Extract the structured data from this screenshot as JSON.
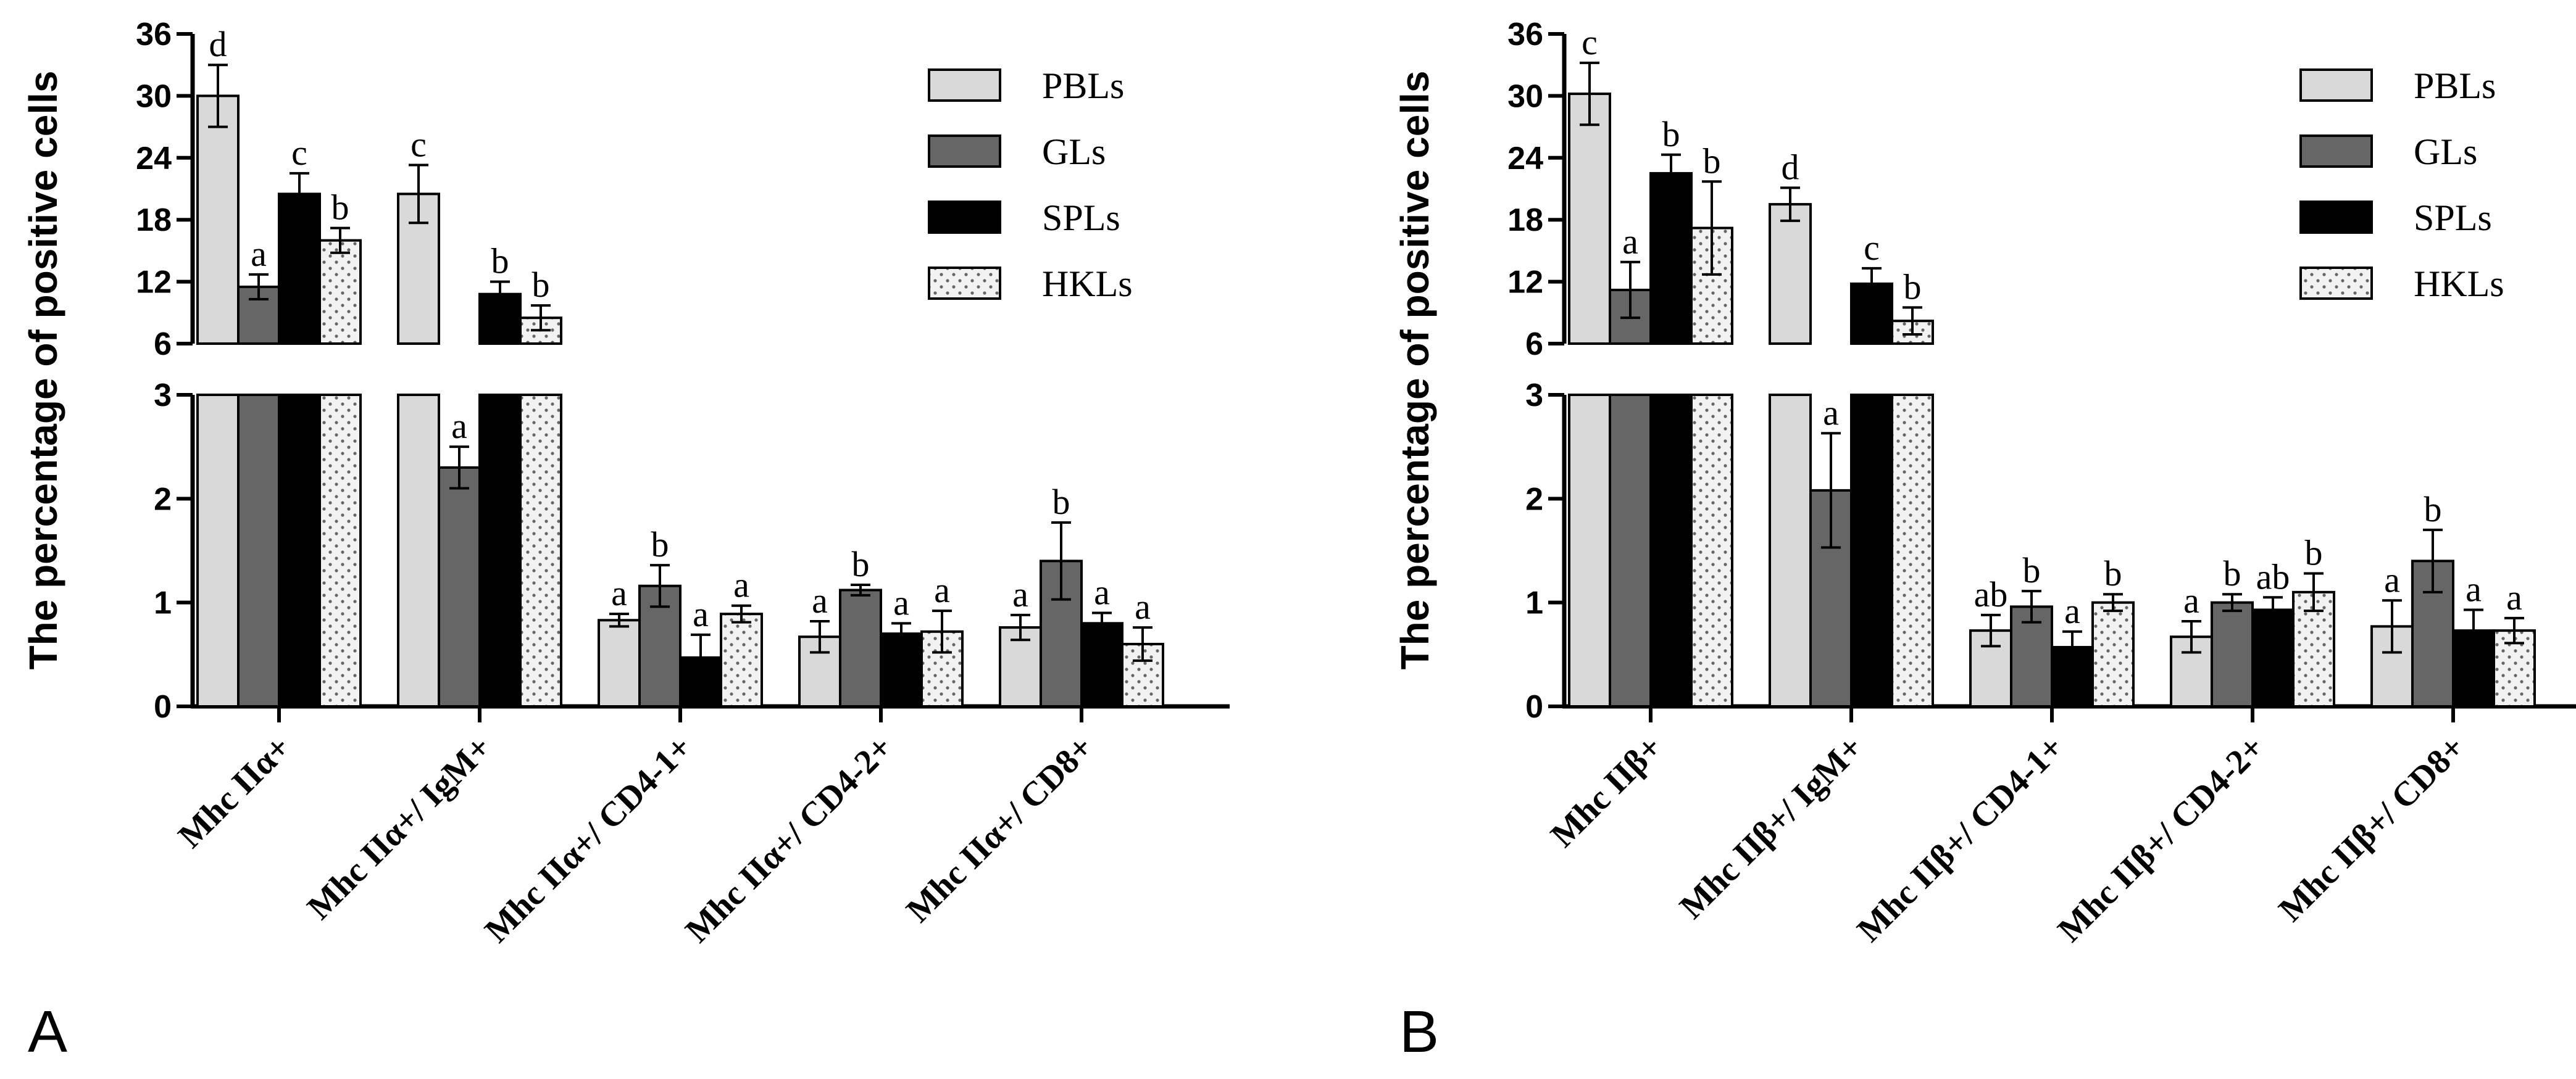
{
  "chart_data": [
    {
      "panel": "A",
      "type": "bar",
      "ylabel": "The percentage of positive cells",
      "ylim": [
        0,
        36
      ],
      "axis_break": [
        3,
        6
      ],
      "y_ticks_upper": [
        "6",
        "12",
        "18",
        "24",
        "30",
        "36"
      ],
      "y_ticks_lower": [
        "0",
        "1",
        "2",
        "3"
      ],
      "categories": [
        "Mhc IIα+",
        "Mhc IIα+/ IgM+",
        "Mhc IIα+/ CD4-1+",
        "Mhc IIα+/ CD4-2+",
        "Mhc IIα+/ CD8+"
      ],
      "legend": [
        "PBLs",
        "GLs",
        "SPLs",
        "HKLs"
      ],
      "series": [
        {
          "name": "PBLs",
          "values": [
            30.0,
            20.5,
            0.83,
            0.67,
            0.76
          ],
          "errors": [
            3.0,
            2.8,
            0.06,
            0.15,
            0.12
          ],
          "labels": [
            "d",
            "c",
            "a",
            "a",
            "a"
          ]
        },
        {
          "name": "GLs",
          "values": [
            11.5,
            2.3,
            1.16,
            1.12,
            1.4
          ],
          "errors": [
            1.2,
            0.2,
            0.2,
            0.05,
            0.37
          ],
          "labels": [
            "a",
            "a",
            "b",
            "b",
            "b"
          ]
        },
        {
          "name": "SPLs",
          "values": [
            20.5,
            10.8,
            0.47,
            0.7,
            0.8
          ],
          "errors": [
            2.0,
            1.2,
            0.22,
            0.1,
            0.1
          ],
          "labels": [
            "c",
            "b",
            "a",
            "a",
            "a"
          ]
        },
        {
          "name": "HKLs",
          "values": [
            16.0,
            8.5,
            0.89,
            0.72,
            0.6
          ],
          "errors": [
            1.2,
            1.2,
            0.08,
            0.2,
            0.16
          ],
          "labels": [
            "b",
            "b",
            "a",
            "a",
            "a"
          ]
        }
      ]
    },
    {
      "panel": "B",
      "type": "bar",
      "ylabel": "The percentage of positive cells",
      "ylim": [
        0,
        36
      ],
      "axis_break": [
        3,
        6
      ],
      "y_ticks_upper": [
        "6",
        "12",
        "18",
        "24",
        "30",
        "36"
      ],
      "y_ticks_lower": [
        "0",
        "1",
        "2",
        "3"
      ],
      "categories": [
        "Mhc IIβ+",
        "Mhc IIβ+/ IgM+",
        "Mhc IIβ+/ CD4-1+",
        "Mhc IIβ+/ CD4-2+",
        "Mhc IIβ+/ CD8+"
      ],
      "legend": [
        "PBLs",
        "GLs",
        "SPLs",
        "HKLs"
      ],
      "series": [
        {
          "name": "PBLs",
          "values": [
            30.2,
            19.5,
            0.73,
            0.67,
            0.77
          ],
          "errors": [
            3.0,
            1.6,
            0.15,
            0.15,
            0.25
          ],
          "labels": [
            "c",
            "d",
            "ab",
            "a",
            "a"
          ]
        },
        {
          "name": "GLs",
          "values": [
            11.2,
            2.08,
            0.96,
            1.0,
            1.4
          ],
          "errors": [
            2.7,
            0.55,
            0.15,
            0.08,
            0.3
          ],
          "labels": [
            "a",
            "a",
            "b",
            "b",
            "b"
          ]
        },
        {
          "name": "SPLs",
          "values": [
            22.5,
            11.8,
            0.57,
            0.93,
            0.73
          ],
          "errors": [
            1.8,
            1.5,
            0.15,
            0.12,
            0.2
          ],
          "labels": [
            "b",
            "c",
            "a",
            "ab",
            "a"
          ]
        },
        {
          "name": "HKLs",
          "values": [
            17.2,
            8.2,
            1.0,
            1.1,
            0.73
          ],
          "errors": [
            4.5,
            1.3,
            0.08,
            0.18,
            0.12
          ],
          "labels": [
            "b",
            "b",
            "b",
            "b",
            "a"
          ]
        }
      ]
    }
  ]
}
